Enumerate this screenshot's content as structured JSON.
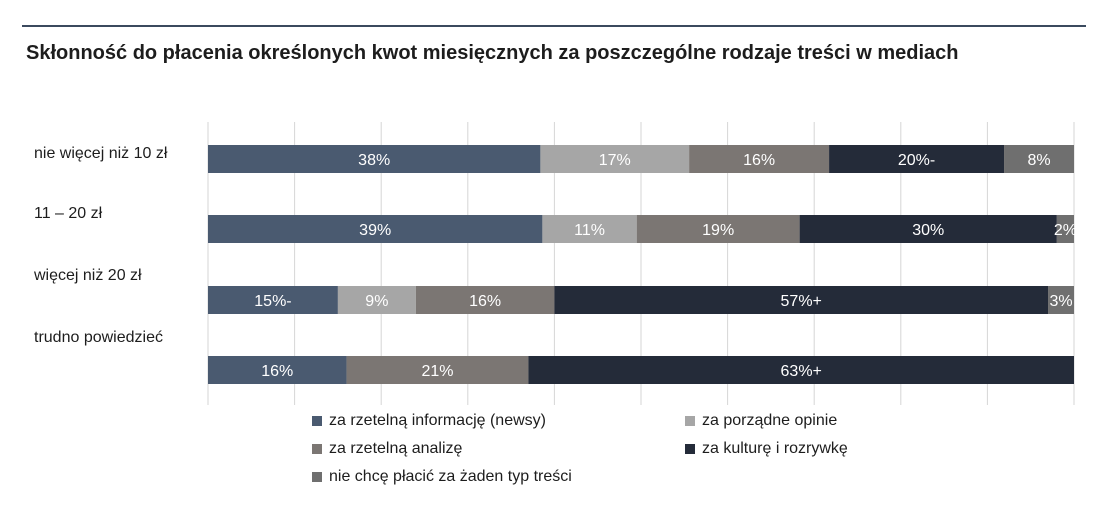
{
  "title": "Skłonność do płacenia określonych kwot miesięcznych za poszczególne rodzaje treści w mediach",
  "colors": {
    "news": "#4a5a70",
    "opinions": "#a6a6a6",
    "analysis": "#7b7673",
    "culture": "#242b39",
    "none": "#6f6f6f",
    "grid": "#d6d6d6",
    "label_text": "#ffffff"
  },
  "chart_data": {
    "type": "bar",
    "orientation": "horizontal",
    "stacked": true,
    "categories": [
      "nie więcej niż 10 zł",
      "11 – 20 zł",
      "więcej niż 20 zł",
      "trudno powiedzieć"
    ],
    "series": [
      {
        "name": "za rzetelną informację (newsy)",
        "color_key": "news",
        "values": [
          38,
          39,
          15,
          16
        ],
        "labels": [
          "38%",
          "39%",
          "15%-",
          "16%"
        ]
      },
      {
        "name": "za porządne opinie",
        "color_key": "opinions",
        "values": [
          17,
          11,
          9,
          0
        ],
        "labels": [
          "17%",
          "11%",
          "9%",
          ""
        ]
      },
      {
        "name": "za rzetelną analizę",
        "color_key": "analysis",
        "values": [
          16,
          19,
          16,
          21
        ],
        "labels": [
          "16%",
          "19%",
          "16%",
          "21%"
        ]
      },
      {
        "name": "za kulturę i rozrywkę",
        "color_key": "culture",
        "values": [
          20,
          30,
          57,
          63
        ],
        "labels": [
          "20%-",
          "30%",
          "57%+",
          "63%+"
        ]
      },
      {
        "name": "nie chcę płacić za żaden typ treści",
        "color_key": "none",
        "values": [
          8,
          2,
          3,
          0
        ],
        "labels": [
          "8%",
          "2%",
          "3%",
          ""
        ]
      }
    ],
    "xlim": [
      0,
      100
    ],
    "grid": true,
    "legend_position": "bottom"
  }
}
